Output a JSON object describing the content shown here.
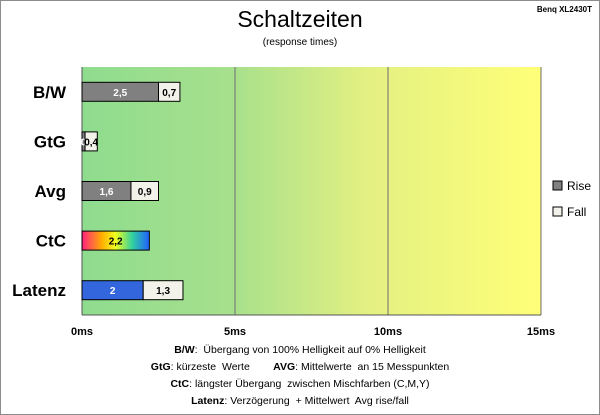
{
  "header": {
    "title": "Schaltzeiten",
    "subtitle": "(response times)",
    "model": "Benq XL2430T"
  },
  "chart_data": {
    "type": "bar",
    "orientation": "horizontal",
    "stacked": true,
    "title": "Schaltzeiten",
    "subtitle": "(response times)",
    "categories": [
      "B/W",
      "GtG",
      "Avg",
      "CtC",
      "Latenz"
    ],
    "series": [
      {
        "name": "Rise",
        "color": "#808080",
        "values": [
          2.5,
          0.1,
          1.6,
          2.2,
          2.0
        ],
        "labels": [
          "2,5",
          "0",
          "1,6",
          "2,2",
          "2"
        ]
      },
      {
        "name": "Fall",
        "color": "#f2f2ea",
        "values": [
          0.7,
          0.4,
          0.9,
          null,
          1.3
        ],
        "labels": [
          "0,7",
          "0,4",
          "0,9",
          "",
          "1,3"
        ]
      }
    ],
    "special_colors": {
      "CtC": "gradient",
      "Latenz": "#3366dd"
    },
    "xlim": [
      0,
      15
    ],
    "ticks": [
      "0ms",
      "5ms",
      "10ms",
      "15ms"
    ],
    "background": "gradient green-to-yellow",
    "grid": true,
    "legend_position": "right"
  },
  "footer": {
    "line1": {
      "key": "B/W",
      "text": ":  Übergang von 100% Helligkeit auf 0% Helligkeit"
    },
    "line2": {
      "key1": "GtG",
      "text1": ": kürzeste  Werte",
      "key2": "AVG",
      "text2": ": Mittelwerte  an 15 Messpunkten"
    },
    "line3": {
      "key": "CtC",
      "text": ": längster Übergang  zwischen Mischfarben (C,M,Y)"
    },
    "line4": {
      "key": "Latenz",
      "text": ": Verzögerung  + Mittelwert  Avg rise/fall"
    }
  }
}
